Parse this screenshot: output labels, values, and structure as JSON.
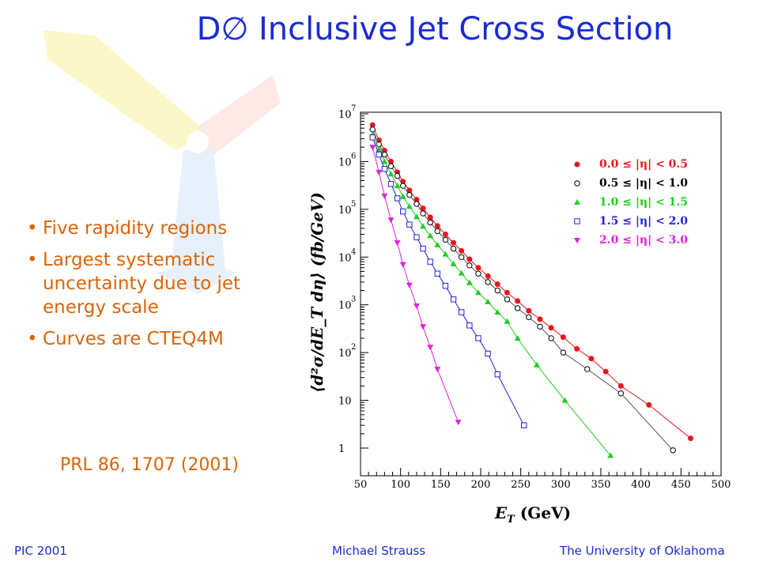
{
  "title": "D∅ Inclusive Jet Cross Section",
  "bullets": [
    "Five rapidity regions",
    "Largest systematic uncertainty due to jet energy scale",
    "Curves are CTEQ4M"
  ],
  "bullet_symbol": "•",
  "reference": "PRL 86, 1707 (2001)",
  "footer": {
    "left": "PIC 2001",
    "center": "Michael Strauss",
    "right": "The University of Oklahoma"
  },
  "colors": {
    "title": "#1a2bd6",
    "bullets": "#d9650b",
    "footer": "#1a2bd6"
  },
  "chart_data": {
    "type": "scatter",
    "xlabel": "E_T (GeV)",
    "ylabel": "⟨d²σ/dE_T dη⟩ (fb/GeV)",
    "xlim": [
      50,
      500
    ],
    "ylim": [
      0.3,
      10000000
    ],
    "ylog": true,
    "grid": false,
    "legend_position": "top-right",
    "x_ticks": [
      "50",
      "100",
      "150",
      "200",
      "250",
      "300",
      "350",
      "400",
      "450",
      "500"
    ],
    "y_ticks": [
      {
        "base": "1",
        "exp": ""
      },
      {
        "base": "10",
        "exp": ""
      },
      {
        "base": "10",
        "exp": "2"
      },
      {
        "base": "10",
        "exp": "3"
      },
      {
        "base": "10",
        "exp": "4"
      },
      {
        "base": "10",
        "exp": "5"
      },
      {
        "base": "10",
        "exp": "6"
      },
      {
        "base": "10",
        "exp": "7"
      }
    ],
    "series": [
      {
        "name": "0.0 ≤ |η| < 0.5",
        "color": "#e8141a",
        "marker": "filled-circle",
        "curve_color": "#e8141a",
        "x": [
          65,
          73,
          80,
          88,
          96,
          103,
          111,
          120,
          128,
          137,
          146,
          156,
          166,
          176,
          186,
          197,
          209,
          221,
          233,
          246,
          260,
          274,
          288,
          303,
          320,
          338,
          356,
          375,
          410,
          462
        ],
        "y": [
          5800000,
          2800000,
          1700000,
          1000000,
          600000,
          380000,
          250000,
          160000,
          105000,
          68000,
          45000,
          30000,
          20000,
          13500,
          9000,
          6000,
          4000,
          2700,
          1800,
          1200,
          750,
          500,
          330,
          210,
          120,
          75,
          40,
          20,
          8,
          1.6
        ]
      },
      {
        "name": "0.5 ≤ |η| < 1.0",
        "color": "#000000",
        "marker": "open-circle",
        "curve_color": "#555555",
        "x": [
          65,
          73,
          80,
          88,
          96,
          103,
          111,
          120,
          128,
          137,
          146,
          156,
          166,
          176,
          186,
          197,
          209,
          221,
          233,
          246,
          260,
          274,
          288,
          303,
          333,
          375,
          440
        ],
        "y": [
          4700000,
          2300000,
          1400000,
          800000,
          500000,
          310000,
          200000,
          130000,
          82000,
          53000,
          35000,
          23000,
          15000,
          10000,
          6700,
          4500,
          3000,
          2000,
          1300,
          850,
          550,
          350,
          200,
          100,
          45,
          14,
          0.9
        ]
      },
      {
        "name": "1.0 ≤ |η| < 1.5",
        "color": "#22cc22",
        "marker": "filled-triangle-up",
        "curve_color": "#22cc22",
        "x": [
          65,
          73,
          80,
          88,
          96,
          103,
          111,
          120,
          128,
          137,
          146,
          156,
          166,
          176,
          186,
          197,
          209,
          221,
          233,
          246,
          270,
          305,
          362
        ],
        "y": [
          3600000,
          1800000,
          1000000,
          550000,
          310000,
          185000,
          115000,
          70000,
          44000,
          28000,
          18000,
          11500,
          7200,
          4600,
          2900,
          1800,
          1150,
          700,
          450,
          200,
          55,
          10,
          0.7
        ]
      },
      {
        "name": "1.5 ≤ |η| < 2.0",
        "color": "#2222dd",
        "marker": "open-square",
        "curve_color": "#2222dd",
        "x": [
          65,
          73,
          80,
          88,
          96,
          103,
          111,
          120,
          128,
          137,
          146,
          156,
          166,
          176,
          186,
          197,
          209,
          221,
          254
        ],
        "y": [
          3200000,
          1400000,
          700000,
          340000,
          170000,
          90000,
          48000,
          26000,
          15000,
          8000,
          4500,
          2500,
          1300,
          700,
          370,
          200,
          95,
          35,
          3
        ]
      },
      {
        "name": "2.0 ≤ |η| < 3.0",
        "color": "#dd22dd",
        "marker": "filled-triangle-down",
        "curve_color": "#dd22dd",
        "x": [
          65,
          73,
          80,
          88,
          96,
          103,
          111,
          120,
          128,
          137,
          146,
          172
        ],
        "y": [
          2000000,
          600000,
          190000,
          60000,
          20000,
          7000,
          2600,
          950,
          350,
          130,
          45,
          3.5
        ]
      }
    ]
  }
}
